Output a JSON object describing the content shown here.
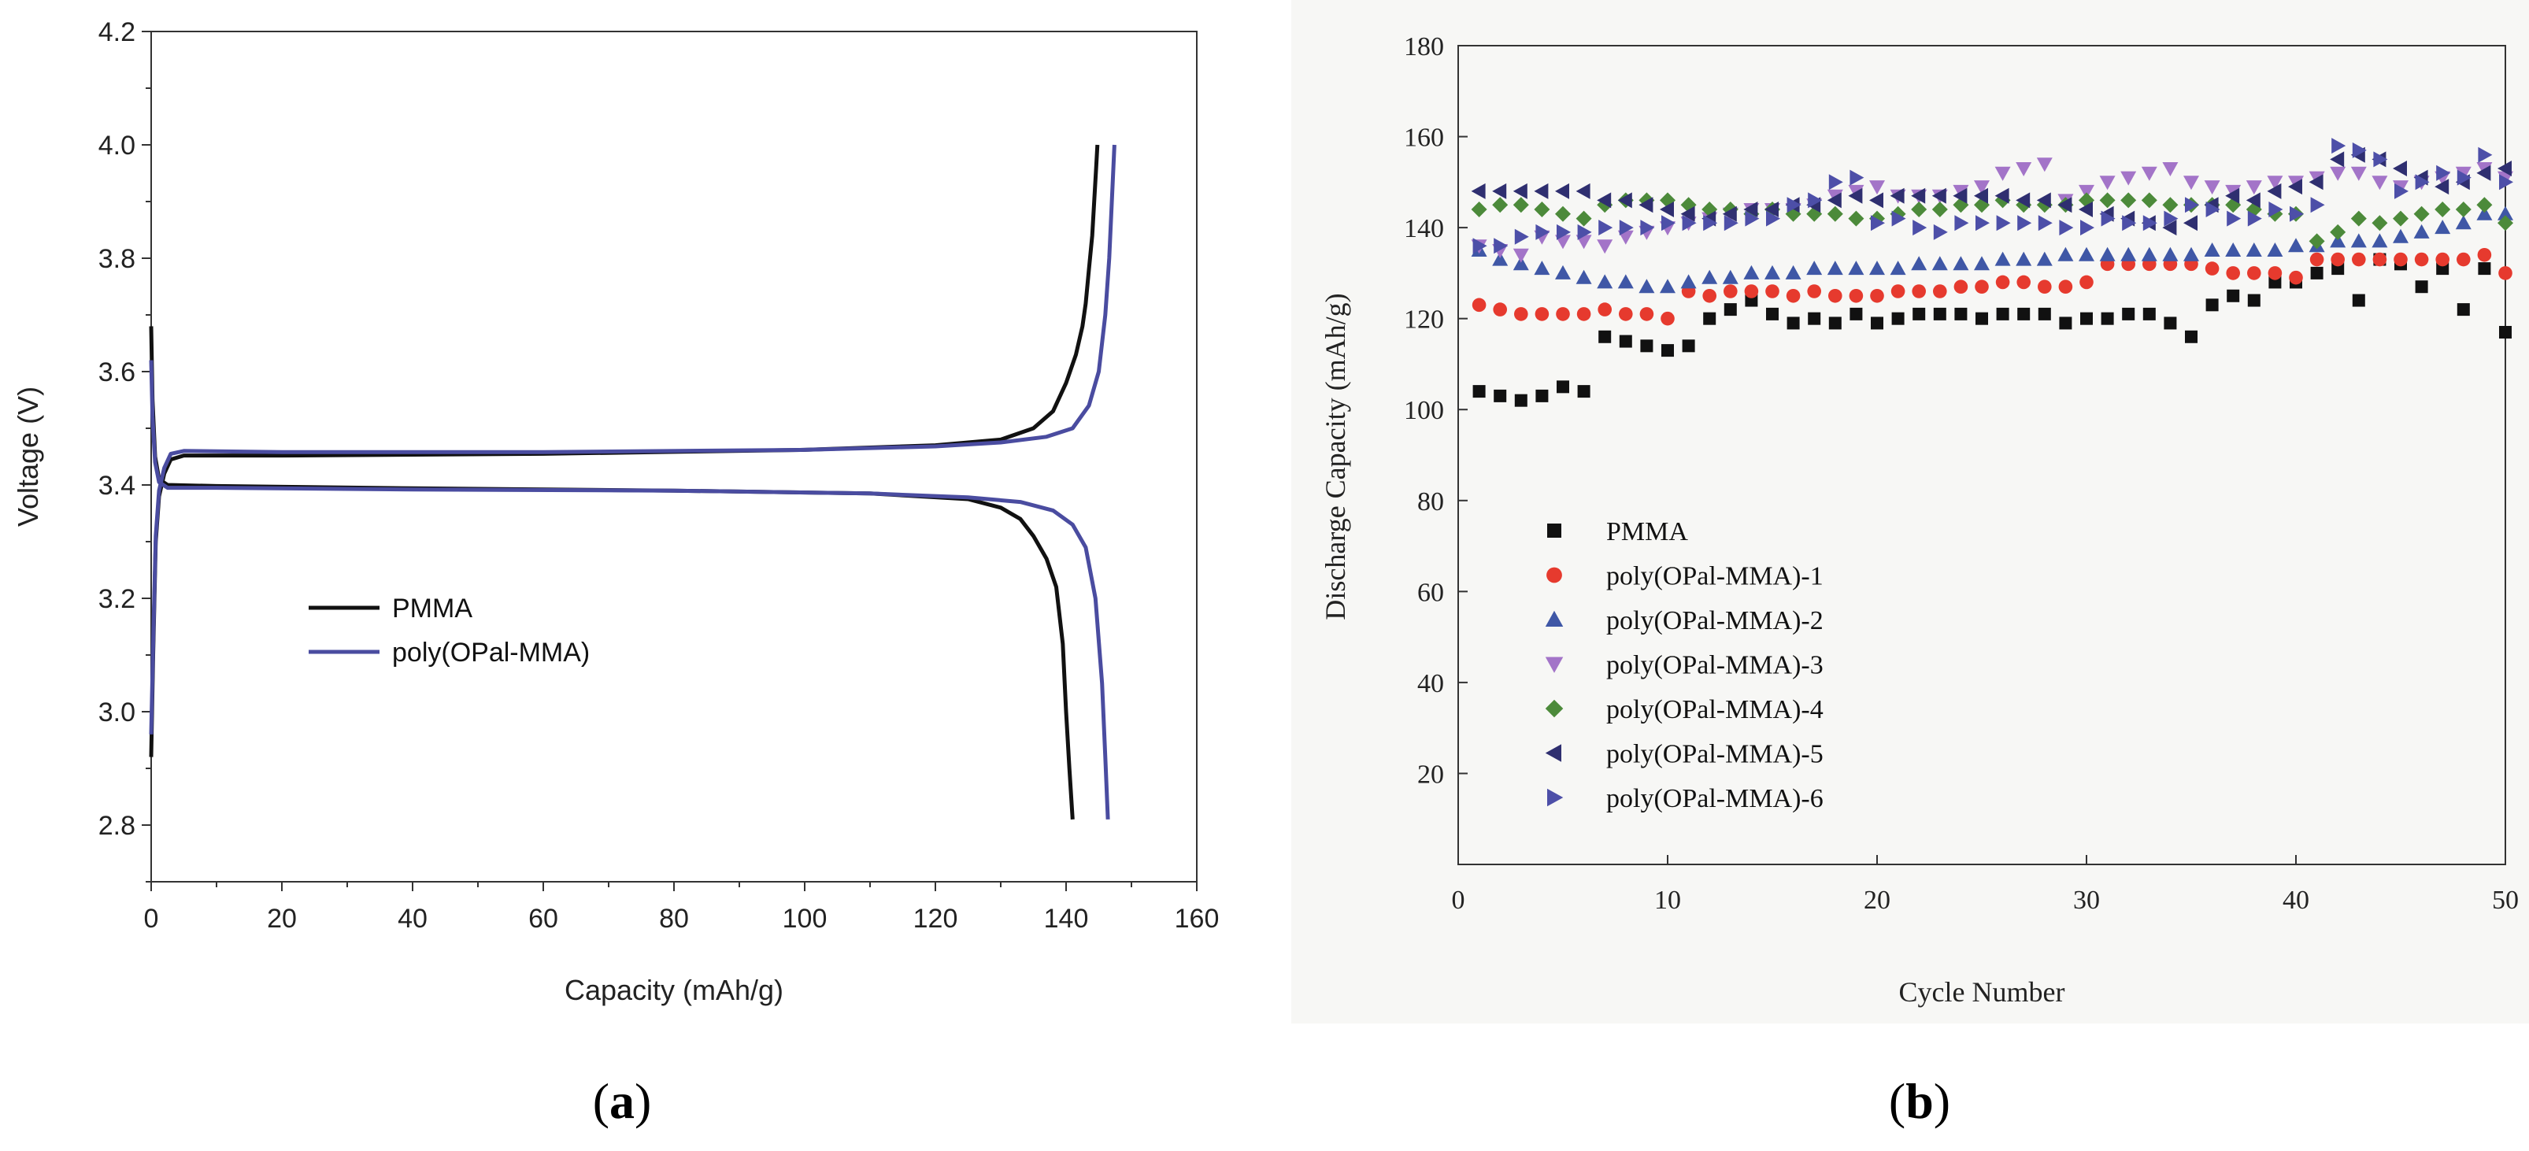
{
  "chart_data": [
    {
      "id": "a",
      "type": "line",
      "panel_label": {
        "open": "(",
        "letter": "a",
        "close": ")"
      },
      "title": "",
      "xlabel": "Capacity (mAh/g)",
      "ylabel": "Voltage (V)",
      "xlim": [
        0,
        160
      ],
      "ylim": [
        2.7,
        4.2
      ],
      "xticks": [
        0,
        20,
        40,
        60,
        80,
        100,
        120,
        140,
        160
      ],
      "yticks": [
        2.8,
        3.0,
        3.2,
        3.4,
        3.6,
        3.8,
        4.0,
        4.2
      ],
      "yticks_labels": [
        "2.8",
        "3.0",
        "3.2",
        "3.4",
        "3.6",
        "3.8",
        "4.0",
        "4.2"
      ],
      "grid": false,
      "legend_position": "center-left",
      "series": [
        {
          "name": "PMMA",
          "color": "#111111",
          "charge": [
            [
              0,
              2.92
            ],
            [
              0.3,
              3.1
            ],
            [
              0.7,
              3.3
            ],
            [
              1.2,
              3.38
            ],
            [
              2,
              3.42
            ],
            [
              3,
              3.445
            ],
            [
              5,
              3.452
            ],
            [
              20,
              3.452
            ],
            [
              60,
              3.455
            ],
            [
              100,
              3.462
            ],
            [
              120,
              3.47
            ],
            [
              130,
              3.48
            ],
            [
              135,
              3.5
            ],
            [
              138,
              3.53
            ],
            [
              140,
              3.58
            ],
            [
              141.5,
              3.63
            ],
            [
              142.5,
              3.68
            ],
            [
              143,
              3.72
            ],
            [
              143.5,
              3.78
            ],
            [
              144,
              3.84
            ],
            [
              144.3,
              3.9
            ],
            [
              144.6,
              3.96
            ],
            [
              144.8,
              4.0
            ]
          ],
          "discharge": [
            [
              0,
              3.68
            ],
            [
              0.2,
              3.55
            ],
            [
              0.6,
              3.45
            ],
            [
              1.2,
              3.41
            ],
            [
              2.5,
              3.4
            ],
            [
              10,
              3.398
            ],
            [
              40,
              3.394
            ],
            [
              80,
              3.39
            ],
            [
              110,
              3.385
            ],
            [
              125,
              3.375
            ],
            [
              130,
              3.36
            ],
            [
              133,
              3.34
            ],
            [
              135,
              3.31
            ],
            [
              137,
              3.27
            ],
            [
              138.5,
              3.22
            ],
            [
              139.5,
              3.12
            ],
            [
              140,
              3.0
            ],
            [
              140.5,
              2.9
            ],
            [
              141,
              2.81
            ]
          ]
        },
        {
          "name": "poly(OPal-MMA)",
          "color": "#4a4ca0",
          "charge": [
            [
              0,
              2.96
            ],
            [
              0.3,
              3.12
            ],
            [
              0.7,
              3.31
            ],
            [
              1.2,
              3.39
            ],
            [
              2,
              3.43
            ],
            [
              3,
              3.455
            ],
            [
              5,
              3.46
            ],
            [
              20,
              3.458
            ],
            [
              60,
              3.458
            ],
            [
              100,
              3.462
            ],
            [
              120,
              3.468
            ],
            [
              130,
              3.475
            ],
            [
              137,
              3.485
            ],
            [
              141,
              3.5
            ],
            [
              143.5,
              3.54
            ],
            [
              145,
              3.6
            ],
            [
              146,
              3.7
            ],
            [
              146.6,
              3.8
            ],
            [
              147,
              3.9
            ],
            [
              147.4,
              4.0
            ]
          ],
          "discharge": [
            [
              0,
              3.62
            ],
            [
              0.2,
              3.52
            ],
            [
              0.6,
              3.44
            ],
            [
              1.2,
              3.405
            ],
            [
              2.5,
              3.395
            ],
            [
              10,
              3.395
            ],
            [
              40,
              3.392
            ],
            [
              80,
              3.39
            ],
            [
              110,
              3.385
            ],
            [
              125,
              3.378
            ],
            [
              133,
              3.37
            ],
            [
              138,
              3.355
            ],
            [
              141,
              3.33
            ],
            [
              143,
              3.29
            ],
            [
              144.5,
              3.2
            ],
            [
              145.5,
              3.05
            ],
            [
              146,
              2.92
            ],
            [
              146.4,
              2.81
            ]
          ]
        }
      ]
    },
    {
      "id": "b",
      "type": "scatter",
      "panel_label": {
        "open": "(",
        "letter": "b",
        "close": ")"
      },
      "title": "",
      "xlabel": "Cycle Number",
      "ylabel": "Discharge Capacity (mAh/g)",
      "xlim": [
        0,
        50
      ],
      "ylim": [
        0,
        180
      ],
      "xticks": [
        0,
        10,
        20,
        30,
        40,
        50
      ],
      "yticks": [
        20,
        40,
        60,
        80,
        100,
        120,
        140,
        160,
        180
      ],
      "grid": false,
      "legend_position": "center-left",
      "series": [
        {
          "name": "PMMA",
          "marker": "square",
          "color": "#111111",
          "values": [
            104,
            103,
            102,
            103,
            105,
            104,
            116,
            115,
            114,
            113,
            114,
            120,
            122,
            124,
            121,
            119,
            120,
            119,
            121,
            119,
            120,
            121,
            121,
            121,
            120,
            121,
            121,
            121,
            119,
            120,
            120,
            121,
            121,
            119,
            116,
            123,
            125,
            124,
            128,
            128,
            130,
            131,
            124,
            133,
            132,
            127,
            131,
            122,
            131,
            117
          ]
        },
        {
          "name": "poly(OPal-MMA)-1",
          "marker": "circle",
          "color": "#e63a2e",
          "values": [
            123,
            122,
            121,
            121,
            121,
            121,
            122,
            121,
            121,
            120,
            126,
            125,
            126,
            126,
            126,
            125,
            126,
            125,
            125,
            125,
            126,
            126,
            126,
            127,
            127,
            128,
            128,
            127,
            127,
            128,
            132,
            132,
            132,
            132,
            132,
            131,
            130,
            130,
            130,
            129,
            133,
            133,
            133,
            133,
            133,
            133,
            133,
            133,
            134,
            130
          ]
        },
        {
          "name": "poly(OPal-MMA)-2",
          "marker": "triangle-up",
          "color": "#3f57a6",
          "values": [
            135,
            133,
            132,
            131,
            130,
            129,
            128,
            128,
            127,
            127,
            128,
            129,
            129,
            130,
            130,
            130,
            131,
            131,
            131,
            131,
            131,
            132,
            132,
            132,
            132,
            133,
            133,
            133,
            134,
            134,
            134,
            134,
            134,
            134,
            134,
            135,
            135,
            135,
            135,
            136,
            136,
            137,
            137,
            137,
            138,
            139,
            140,
            141,
            143,
            143
          ]
        },
        {
          "name": "poly(OPal-MMA)-3",
          "marker": "triangle-down",
          "color": "#a374c8",
          "values": [
            136,
            135,
            134,
            138,
            137,
            137,
            136,
            138,
            139,
            140,
            141,
            142,
            143,
            144,
            144,
            144,
            145,
            147,
            148,
            149,
            147,
            147,
            147,
            148,
            149,
            152,
            153,
            154,
            146,
            148,
            150,
            151,
            152,
            153,
            150,
            149,
            148,
            149,
            150,
            150,
            151,
            152,
            152,
            150,
            149,
            150,
            151,
            152,
            153,
            151
          ]
        },
        {
          "name": "poly(OPal-MMA)-4",
          "marker": "diamond",
          "color": "#4c8a3a",
          "values": [
            144,
            145,
            145,
            144,
            143,
            142,
            145,
            146,
            146,
            146,
            145,
            144,
            144,
            143,
            144,
            143,
            143,
            143,
            142,
            142,
            143,
            144,
            144,
            145,
            145,
            146,
            145,
            145,
            145,
            146,
            146,
            146,
            146,
            145,
            145,
            145,
            145,
            144,
            143,
            143,
            137,
            139,
            142,
            141,
            142,
            143,
            144,
            144,
            145,
            141
          ]
        },
        {
          "name": "poly(OPal-MMA)-5",
          "marker": "triangle-left",
          "color": "#2f2f70",
          "values": [
            148,
            148,
            148,
            148,
            148,
            148,
            146,
            146,
            145,
            144,
            143,
            142,
            143,
            144,
            144,
            145,
            145,
            146,
            147,
            146,
            147,
            147,
            147,
            147,
            147,
            147,
            146,
            146,
            145,
            144,
            143,
            142,
            141,
            140,
            141,
            145,
            147,
            146,
            148,
            149,
            150,
            155,
            156,
            155,
            153,
            151,
            149,
            150,
            152,
            153
          ]
        },
        {
          "name": "poly(OPal-MMA)-6",
          "marker": "triangle-right",
          "color": "#4d4fa8",
          "values": [
            136,
            136,
            138,
            139,
            139,
            139,
            140,
            140,
            140,
            141,
            141,
            141,
            141,
            142,
            142,
            145,
            146,
            150,
            151,
            141,
            142,
            140,
            139,
            141,
            141,
            141,
            141,
            141,
            140,
            140,
            142,
            141,
            141,
            142,
            145,
            144,
            142,
            142,
            144,
            143,
            145,
            158,
            157,
            155,
            148,
            150,
            152,
            151,
            156,
            150
          ]
        }
      ]
    }
  ]
}
